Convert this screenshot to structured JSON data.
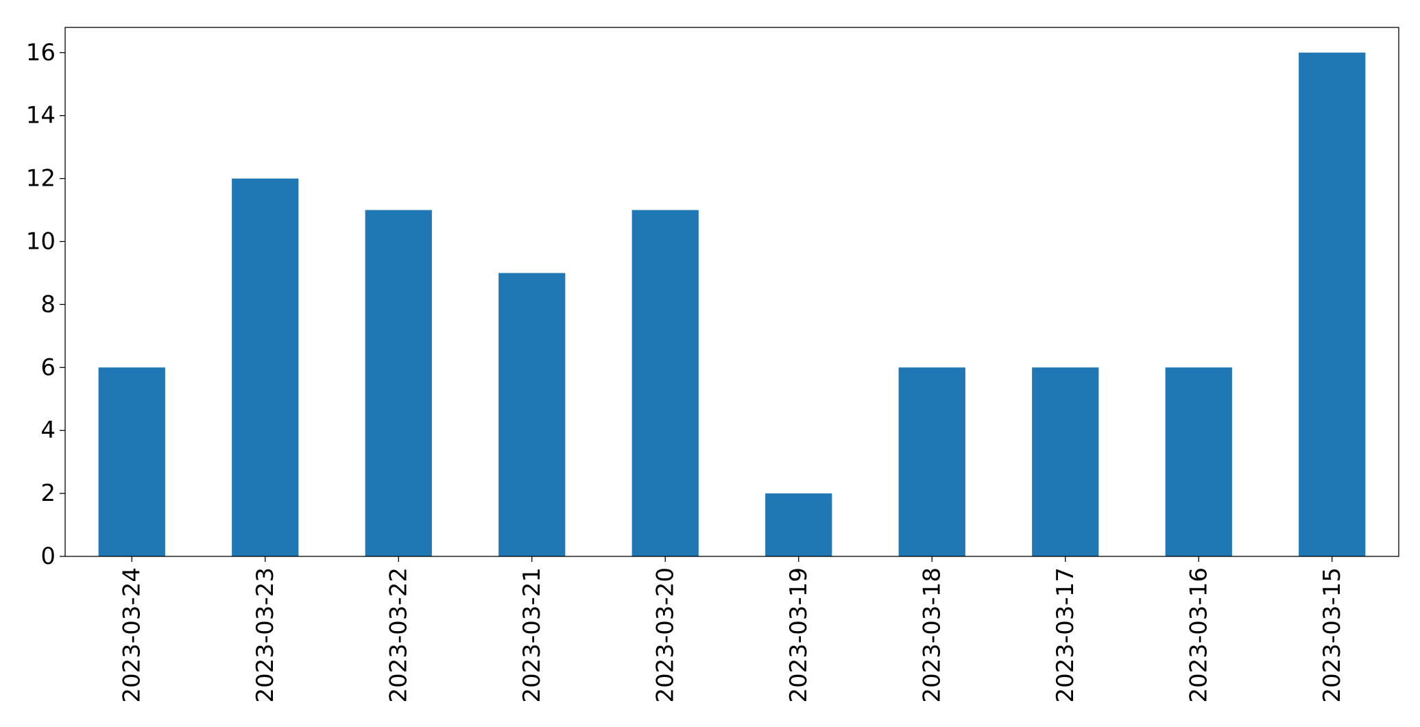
{
  "chart_data": {
    "type": "bar",
    "title": "",
    "xlabel": "",
    "ylabel": "",
    "categories": [
      "2023-03-24",
      "2023-03-23",
      "2023-03-22",
      "2023-03-21",
      "2023-03-20",
      "2023-03-19",
      "2023-03-18",
      "2023-03-17",
      "2023-03-16",
      "2023-03-15"
    ],
    "values": [
      6,
      12,
      11,
      9,
      11,
      2,
      6,
      6,
      6,
      16
    ],
    "ylim": [
      0,
      16.8
    ],
    "yticks": [
      0,
      2,
      4,
      6,
      8,
      10,
      12,
      14,
      16
    ],
    "bar_color": "#1f77b4",
    "grid": false,
    "legend": "none"
  }
}
